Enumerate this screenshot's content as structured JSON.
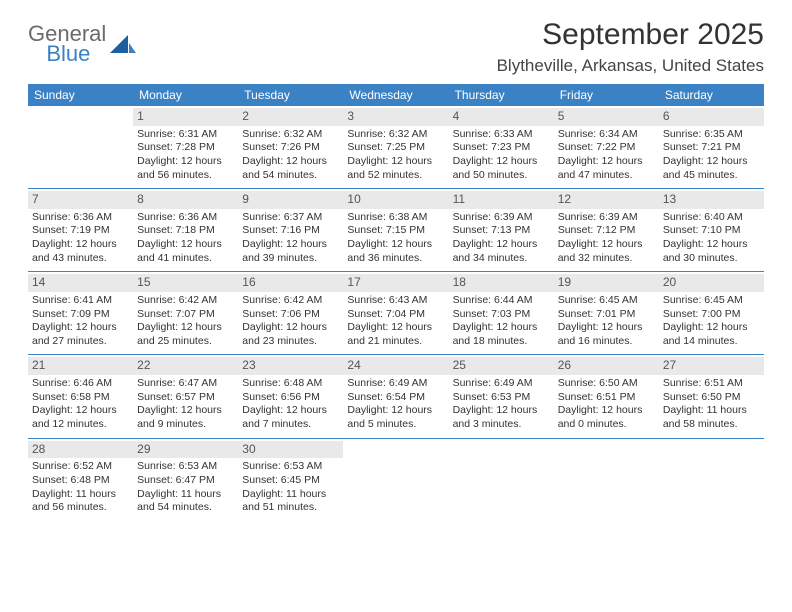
{
  "brand": {
    "word1": "General",
    "word2": "Blue"
  },
  "header": {
    "title": "September 2025",
    "location": "Blytheville, Arkansas, United States"
  },
  "colors": {
    "accent": "#3b82c4",
    "daybar": "#e9e9e9",
    "text": "#333333",
    "logo_gray": "#6b6b6b"
  },
  "weekdays": [
    "Sunday",
    "Monday",
    "Tuesday",
    "Wednesday",
    "Thursday",
    "Friday",
    "Saturday"
  ],
  "weeks": [
    [
      null,
      {
        "n": "1",
        "rise": "Sunrise: 6:31 AM",
        "set": "Sunset: 7:28 PM",
        "day1": "Daylight: 12 hours",
        "day2": "and 56 minutes."
      },
      {
        "n": "2",
        "rise": "Sunrise: 6:32 AM",
        "set": "Sunset: 7:26 PM",
        "day1": "Daylight: 12 hours",
        "day2": "and 54 minutes."
      },
      {
        "n": "3",
        "rise": "Sunrise: 6:32 AM",
        "set": "Sunset: 7:25 PM",
        "day1": "Daylight: 12 hours",
        "day2": "and 52 minutes."
      },
      {
        "n": "4",
        "rise": "Sunrise: 6:33 AM",
        "set": "Sunset: 7:23 PM",
        "day1": "Daylight: 12 hours",
        "day2": "and 50 minutes."
      },
      {
        "n": "5",
        "rise": "Sunrise: 6:34 AM",
        "set": "Sunset: 7:22 PM",
        "day1": "Daylight: 12 hours",
        "day2": "and 47 minutes."
      },
      {
        "n": "6",
        "rise": "Sunrise: 6:35 AM",
        "set": "Sunset: 7:21 PM",
        "day1": "Daylight: 12 hours",
        "day2": "and 45 minutes."
      }
    ],
    [
      {
        "n": "7",
        "rise": "Sunrise: 6:36 AM",
        "set": "Sunset: 7:19 PM",
        "day1": "Daylight: 12 hours",
        "day2": "and 43 minutes."
      },
      {
        "n": "8",
        "rise": "Sunrise: 6:36 AM",
        "set": "Sunset: 7:18 PM",
        "day1": "Daylight: 12 hours",
        "day2": "and 41 minutes."
      },
      {
        "n": "9",
        "rise": "Sunrise: 6:37 AM",
        "set": "Sunset: 7:16 PM",
        "day1": "Daylight: 12 hours",
        "day2": "and 39 minutes."
      },
      {
        "n": "10",
        "rise": "Sunrise: 6:38 AM",
        "set": "Sunset: 7:15 PM",
        "day1": "Daylight: 12 hours",
        "day2": "and 36 minutes."
      },
      {
        "n": "11",
        "rise": "Sunrise: 6:39 AM",
        "set": "Sunset: 7:13 PM",
        "day1": "Daylight: 12 hours",
        "day2": "and 34 minutes."
      },
      {
        "n": "12",
        "rise": "Sunrise: 6:39 AM",
        "set": "Sunset: 7:12 PM",
        "day1": "Daylight: 12 hours",
        "day2": "and 32 minutes."
      },
      {
        "n": "13",
        "rise": "Sunrise: 6:40 AM",
        "set": "Sunset: 7:10 PM",
        "day1": "Daylight: 12 hours",
        "day2": "and 30 minutes."
      }
    ],
    [
      {
        "n": "14",
        "rise": "Sunrise: 6:41 AM",
        "set": "Sunset: 7:09 PM",
        "day1": "Daylight: 12 hours",
        "day2": "and 27 minutes."
      },
      {
        "n": "15",
        "rise": "Sunrise: 6:42 AM",
        "set": "Sunset: 7:07 PM",
        "day1": "Daylight: 12 hours",
        "day2": "and 25 minutes."
      },
      {
        "n": "16",
        "rise": "Sunrise: 6:42 AM",
        "set": "Sunset: 7:06 PM",
        "day1": "Daylight: 12 hours",
        "day2": "and 23 minutes."
      },
      {
        "n": "17",
        "rise": "Sunrise: 6:43 AM",
        "set": "Sunset: 7:04 PM",
        "day1": "Daylight: 12 hours",
        "day2": "and 21 minutes."
      },
      {
        "n": "18",
        "rise": "Sunrise: 6:44 AM",
        "set": "Sunset: 7:03 PM",
        "day1": "Daylight: 12 hours",
        "day2": "and 18 minutes."
      },
      {
        "n": "19",
        "rise": "Sunrise: 6:45 AM",
        "set": "Sunset: 7:01 PM",
        "day1": "Daylight: 12 hours",
        "day2": "and 16 minutes."
      },
      {
        "n": "20",
        "rise": "Sunrise: 6:45 AM",
        "set": "Sunset: 7:00 PM",
        "day1": "Daylight: 12 hours",
        "day2": "and 14 minutes."
      }
    ],
    [
      {
        "n": "21",
        "rise": "Sunrise: 6:46 AM",
        "set": "Sunset: 6:58 PM",
        "day1": "Daylight: 12 hours",
        "day2": "and 12 minutes."
      },
      {
        "n": "22",
        "rise": "Sunrise: 6:47 AM",
        "set": "Sunset: 6:57 PM",
        "day1": "Daylight: 12 hours",
        "day2": "and 9 minutes."
      },
      {
        "n": "23",
        "rise": "Sunrise: 6:48 AM",
        "set": "Sunset: 6:56 PM",
        "day1": "Daylight: 12 hours",
        "day2": "and 7 minutes."
      },
      {
        "n": "24",
        "rise": "Sunrise: 6:49 AM",
        "set": "Sunset: 6:54 PM",
        "day1": "Daylight: 12 hours",
        "day2": "and 5 minutes."
      },
      {
        "n": "25",
        "rise": "Sunrise: 6:49 AM",
        "set": "Sunset: 6:53 PM",
        "day1": "Daylight: 12 hours",
        "day2": "and 3 minutes."
      },
      {
        "n": "26",
        "rise": "Sunrise: 6:50 AM",
        "set": "Sunset: 6:51 PM",
        "day1": "Daylight: 12 hours",
        "day2": "and 0 minutes."
      },
      {
        "n": "27",
        "rise": "Sunrise: 6:51 AM",
        "set": "Sunset: 6:50 PM",
        "day1": "Daylight: 11 hours",
        "day2": "and 58 minutes."
      }
    ],
    [
      {
        "n": "28",
        "rise": "Sunrise: 6:52 AM",
        "set": "Sunset: 6:48 PM",
        "day1": "Daylight: 11 hours",
        "day2": "and 56 minutes."
      },
      {
        "n": "29",
        "rise": "Sunrise: 6:53 AM",
        "set": "Sunset: 6:47 PM",
        "day1": "Daylight: 11 hours",
        "day2": "and 54 minutes."
      },
      {
        "n": "30",
        "rise": "Sunrise: 6:53 AM",
        "set": "Sunset: 6:45 PM",
        "day1": "Daylight: 11 hours",
        "day2": "and 51 minutes."
      },
      null,
      null,
      null,
      null
    ]
  ]
}
